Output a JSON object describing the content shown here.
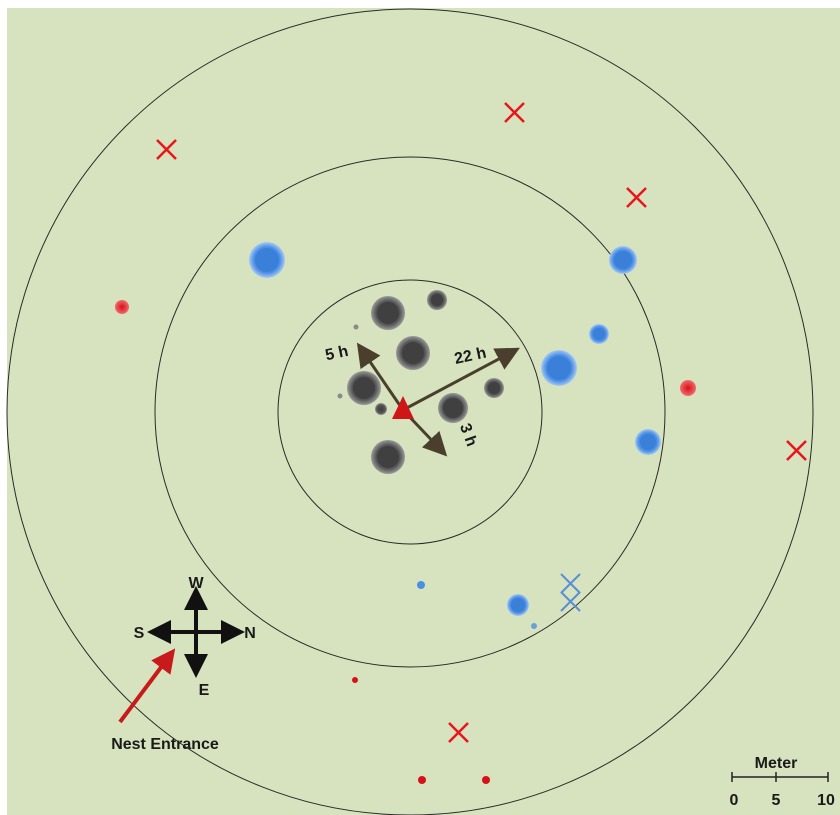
{
  "time_labels": {
    "t5": "5 h",
    "t22": "22 h",
    "t3": "3 h"
  },
  "compass": {
    "north": "N",
    "south": "S",
    "east": "E",
    "west": "W"
  },
  "nest_entrance_label": "Nest Entrance",
  "scale_bar": {
    "title": "Meter",
    "ticks": [
      "0",
      "5",
      "10"
    ]
  },
  "colors": {
    "background": "#d6e3be",
    "ring": "#2a2a2a",
    "gray_marker": "#4a4a4a",
    "blue_marker": "#3f86e0",
    "red_marker": "#e0141e",
    "arrow": "#4a3f2c",
    "cross_red": "#e8161c",
    "cross_blue": "#5a8fd8"
  }
}
